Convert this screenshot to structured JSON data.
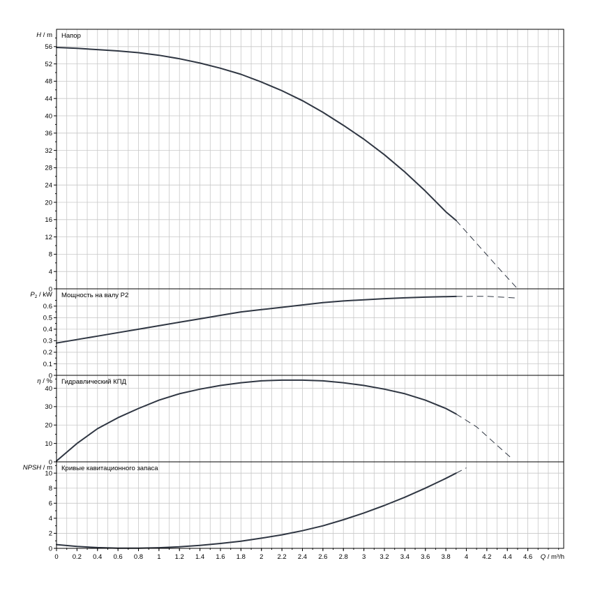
{
  "chart_data": [
    {
      "id": "head",
      "type": "line",
      "title": "Напор",
      "ylabel_symbol": "H",
      "ylabel_unit": "m",
      "ylim": [
        0,
        60
      ],
      "yticks": [
        0,
        4,
        8,
        12,
        16,
        20,
        24,
        28,
        32,
        36,
        40,
        44,
        48,
        52,
        56
      ],
      "x": [
        0,
        0.2,
        0.4,
        0.6,
        0.8,
        1.0,
        1.2,
        1.4,
        1.6,
        1.8,
        2.0,
        2.2,
        2.4,
        2.6,
        2.8,
        3.0,
        3.2,
        3.4,
        3.6,
        3.8,
        3.9
      ],
      "values": [
        55.8,
        55.6,
        55.3,
        55.0,
        54.6,
        54.0,
        53.2,
        52.2,
        51.0,
        49.6,
        47.8,
        45.8,
        43.5,
        40.8,
        37.8,
        34.6,
        31.0,
        27.0,
        22.6,
        17.8,
        15.8
      ],
      "extrapolated_x": [
        3.9,
        4.1,
        4.3,
        4.5
      ],
      "extrapolated_values": [
        15.8,
        10.5,
        5.2,
        0
      ]
    },
    {
      "id": "power",
      "type": "line",
      "title": "Мощность на валу P2",
      "ylabel_symbol": "P",
      "ylabel_sub": "2",
      "ylabel_unit": "kW",
      "ylim": [
        0,
        0.75
      ],
      "yticks": [
        0,
        0.1,
        0.2,
        0.3,
        0.4,
        0.5,
        0.6
      ],
      "ytick_labels": [
        "0",
        "0.1",
        "0.2",
        "0.3",
        "0.4",
        "0.5",
        "0.6"
      ],
      "x": [
        0,
        0.2,
        0.4,
        0.6,
        0.8,
        1.0,
        1.2,
        1.4,
        1.6,
        1.8,
        2.0,
        2.2,
        2.4,
        2.6,
        2.8,
        3.0,
        3.2,
        3.4,
        3.6,
        3.8,
        3.9
      ],
      "values": [
        0.28,
        0.31,
        0.34,
        0.37,
        0.4,
        0.43,
        0.46,
        0.49,
        0.52,
        0.55,
        0.57,
        0.59,
        0.61,
        0.63,
        0.645,
        0.655,
        0.665,
        0.672,
        0.678,
        0.682,
        0.684
      ],
      "extrapolated_x": [
        3.9,
        4.2,
        4.5
      ],
      "extrapolated_values": [
        0.684,
        0.685,
        0.67
      ]
    },
    {
      "id": "efficiency",
      "type": "line",
      "title": "Гидравлический КПД",
      "ylabel_symbol": "η",
      "ylabel_unit": "%",
      "ylim": [
        0,
        47
      ],
      "yticks": [
        0,
        10,
        20,
        30,
        40
      ],
      "x": [
        0,
        0.2,
        0.4,
        0.6,
        0.8,
        1.0,
        1.2,
        1.4,
        1.6,
        1.8,
        2.0,
        2.2,
        2.4,
        2.6,
        2.8,
        3.0,
        3.2,
        3.4,
        3.6,
        3.8,
        3.9
      ],
      "values": [
        0.5,
        10,
        18,
        24,
        29,
        33.5,
        37,
        39.5,
        41.5,
        43,
        44,
        44.4,
        44.4,
        44,
        43,
        41.5,
        39.5,
        37,
        33.5,
        29,
        26
      ],
      "extrapolated_x": [
        3.9,
        4.1,
        4.3,
        4.45
      ],
      "extrapolated_values": [
        26,
        19,
        9,
        1.5
      ]
    },
    {
      "id": "npsh",
      "type": "line",
      "title": "Кривые кавитационного запаса",
      "ylabel_symbol": "NPSH",
      "ylabel_unit": "m",
      "ylim": [
        0,
        11.5
      ],
      "yticks": [
        0,
        2,
        4,
        6,
        8,
        10
      ],
      "x": [
        0,
        0.2,
        0.4,
        0.6,
        0.8,
        1.0,
        1.2,
        1.4,
        1.6,
        1.8,
        2.0,
        2.2,
        2.4,
        2.6,
        2.8,
        3.0,
        3.2,
        3.4,
        3.6,
        3.8,
        3.9
      ],
      "values": [
        0.5,
        0.25,
        0.1,
        0.02,
        0.02,
        0.08,
        0.2,
        0.4,
        0.65,
        0.95,
        1.35,
        1.8,
        2.35,
        3.0,
        3.8,
        4.7,
        5.7,
        6.8,
        8.0,
        9.3,
        10.0
      ],
      "extrapolated_x": [
        3.9,
        4.0
      ],
      "extrapolated_values": [
        10.0,
        10.7
      ]
    }
  ],
  "x_axis": {
    "xlim": [
      0,
      4.95
    ],
    "ticks": [
      0,
      0.2,
      0.4,
      0.6,
      0.8,
      1,
      1.2,
      1.4,
      1.6,
      1.8,
      2,
      2.2,
      2.4,
      2.6,
      2.8,
      3,
      3.2,
      3.4,
      3.6,
      3.8,
      4,
      4.2,
      4.4,
      4.6
    ],
    "tick_labels": [
      "0",
      "0.2",
      "0.4",
      "0.6",
      "0.8",
      "1",
      "1.2",
      "1.4",
      "1.6",
      "1.8",
      "2",
      "2.2",
      "2.4",
      "2.6",
      "2.8",
      "3",
      "3.2",
      "3.4",
      "3.6",
      "3.8",
      "4",
      "4.2",
      "4.4",
      "4.6"
    ],
    "label_symbol": "Q",
    "label_unit": "m³/h"
  }
}
